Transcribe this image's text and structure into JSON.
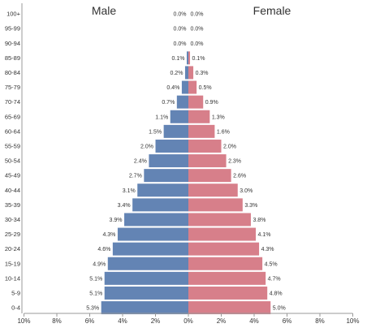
{
  "chart_data": {
    "type": "bar",
    "orientation": "horizontal-mirrored",
    "male_label": "Male",
    "female_label": "Female",
    "categories": [
      "100+",
      "95-99",
      "90-94",
      "85-89",
      "80-84",
      "75-79",
      "70-74",
      "65-69",
      "60-64",
      "55-59",
      "50-54",
      "45-49",
      "40-44",
      "35-39",
      "30-34",
      "25-29",
      "20-24",
      "15-19",
      "10-14",
      "5-9",
      "0-4"
    ],
    "series": [
      {
        "name": "Male",
        "values": [
          0.0,
          0.0,
          0.0,
          0.1,
          0.2,
          0.4,
          0.7,
          1.1,
          1.5,
          2.0,
          2.4,
          2.7,
          3.1,
          3.4,
          3.9,
          4.3,
          4.6,
          4.9,
          5.1,
          5.1,
          5.3
        ]
      },
      {
        "name": "Female",
        "values": [
          0.0,
          0.0,
          0.0,
          0.1,
          0.3,
          0.5,
          0.9,
          1.3,
          1.6,
          2.0,
          2.3,
          2.6,
          3.0,
          3.3,
          3.8,
          4.1,
          4.3,
          4.5,
          4.7,
          4.8,
          5.0
        ]
      }
    ],
    "value_labels": {
      "male": [
        "0.0%",
        "0.0%",
        "0.0%",
        "0.1%",
        "0.2%",
        "0.4%",
        "0.7%",
        "1.1%",
        "1.5%",
        "2.0%",
        "2.4%",
        "2.7%",
        "3.1%",
        "3.4%",
        "3.9%",
        "4.3%",
        "4.6%",
        "4.9%",
        "5.1%",
        "5.1%",
        "5.3%"
      ],
      "female": [
        "0.0%",
        "0.0%",
        "0.0%",
        "0.1%",
        "0.3%",
        "0.5%",
        "0.9%",
        "1.3%",
        "1.6%",
        "2.0%",
        "2.3%",
        "2.6%",
        "3.0%",
        "3.3%",
        "3.8%",
        "4.1%",
        "4.3%",
        "4.5%",
        "4.7%",
        "4.8%",
        "5.0%"
      ]
    },
    "x_ticks": [
      "10%",
      "8%",
      "6%",
      "4%",
      "2%",
      "0%",
      "2%",
      "4%",
      "6%",
      "8%",
      "10%"
    ],
    "xlim": [
      -10,
      10
    ],
    "colors": {
      "male": "#6384b4",
      "female": "#d77f8a"
    },
    "grid": false,
    "legend": "none"
  }
}
